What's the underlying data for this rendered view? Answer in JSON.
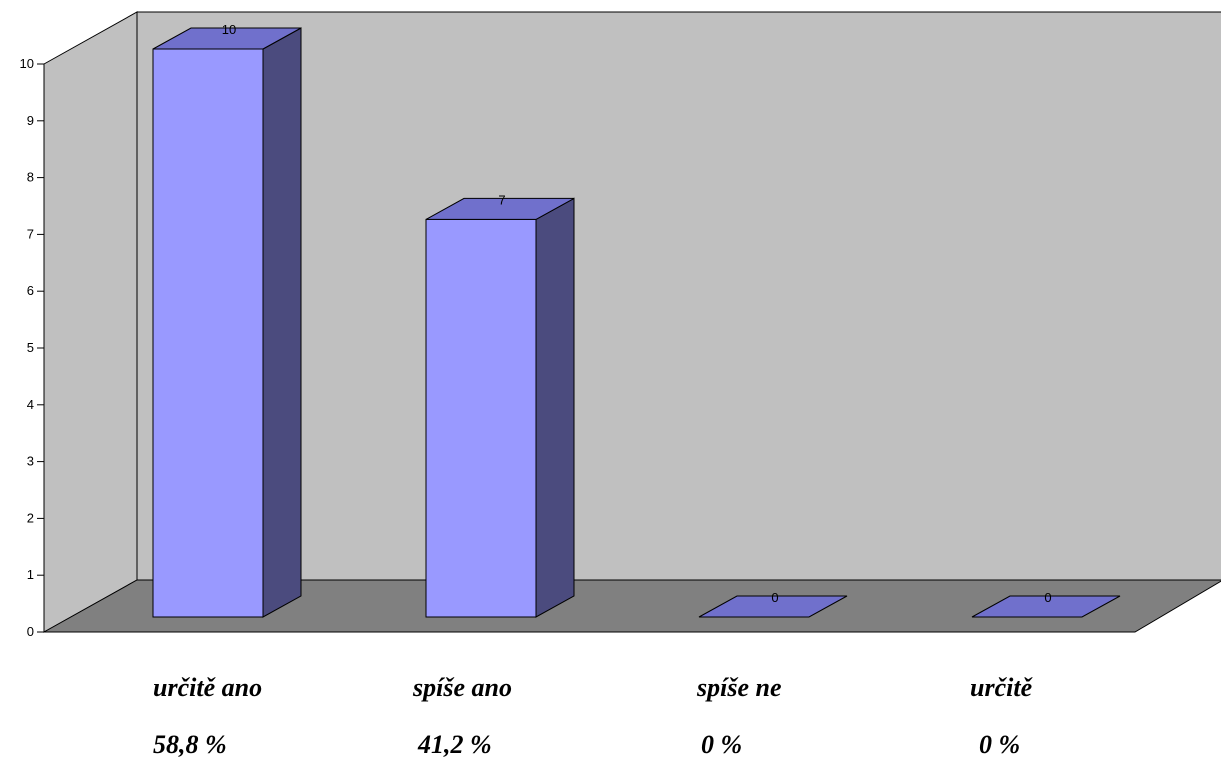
{
  "chart_data": {
    "type": "bar",
    "style": "3d-column",
    "categories": [
      "určitě ano",
      "spíše ano",
      "spíše ne",
      "určitě"
    ],
    "values": [
      10,
      7,
      0,
      0
    ],
    "data_labels": [
      "10",
      "7",
      "0",
      "0"
    ],
    "percent_labels": [
      "58,8 %",
      "41,2 %",
      "0 %",
      "0 %"
    ],
    "yticks": [
      "0",
      "1",
      "2",
      "3",
      "4",
      "5",
      "6",
      "7",
      "8",
      "9",
      "10"
    ],
    "ylim": [
      0,
      10
    ],
    "grid": false,
    "legend": "none",
    "colors": {
      "bar_front": "#9999ff",
      "bar_side": "#4b4b7e",
      "bar_top": "#7070cc",
      "back_wall": "#c0c0c0",
      "side_wall": "#c0c0c0",
      "floor": "#808080"
    }
  }
}
